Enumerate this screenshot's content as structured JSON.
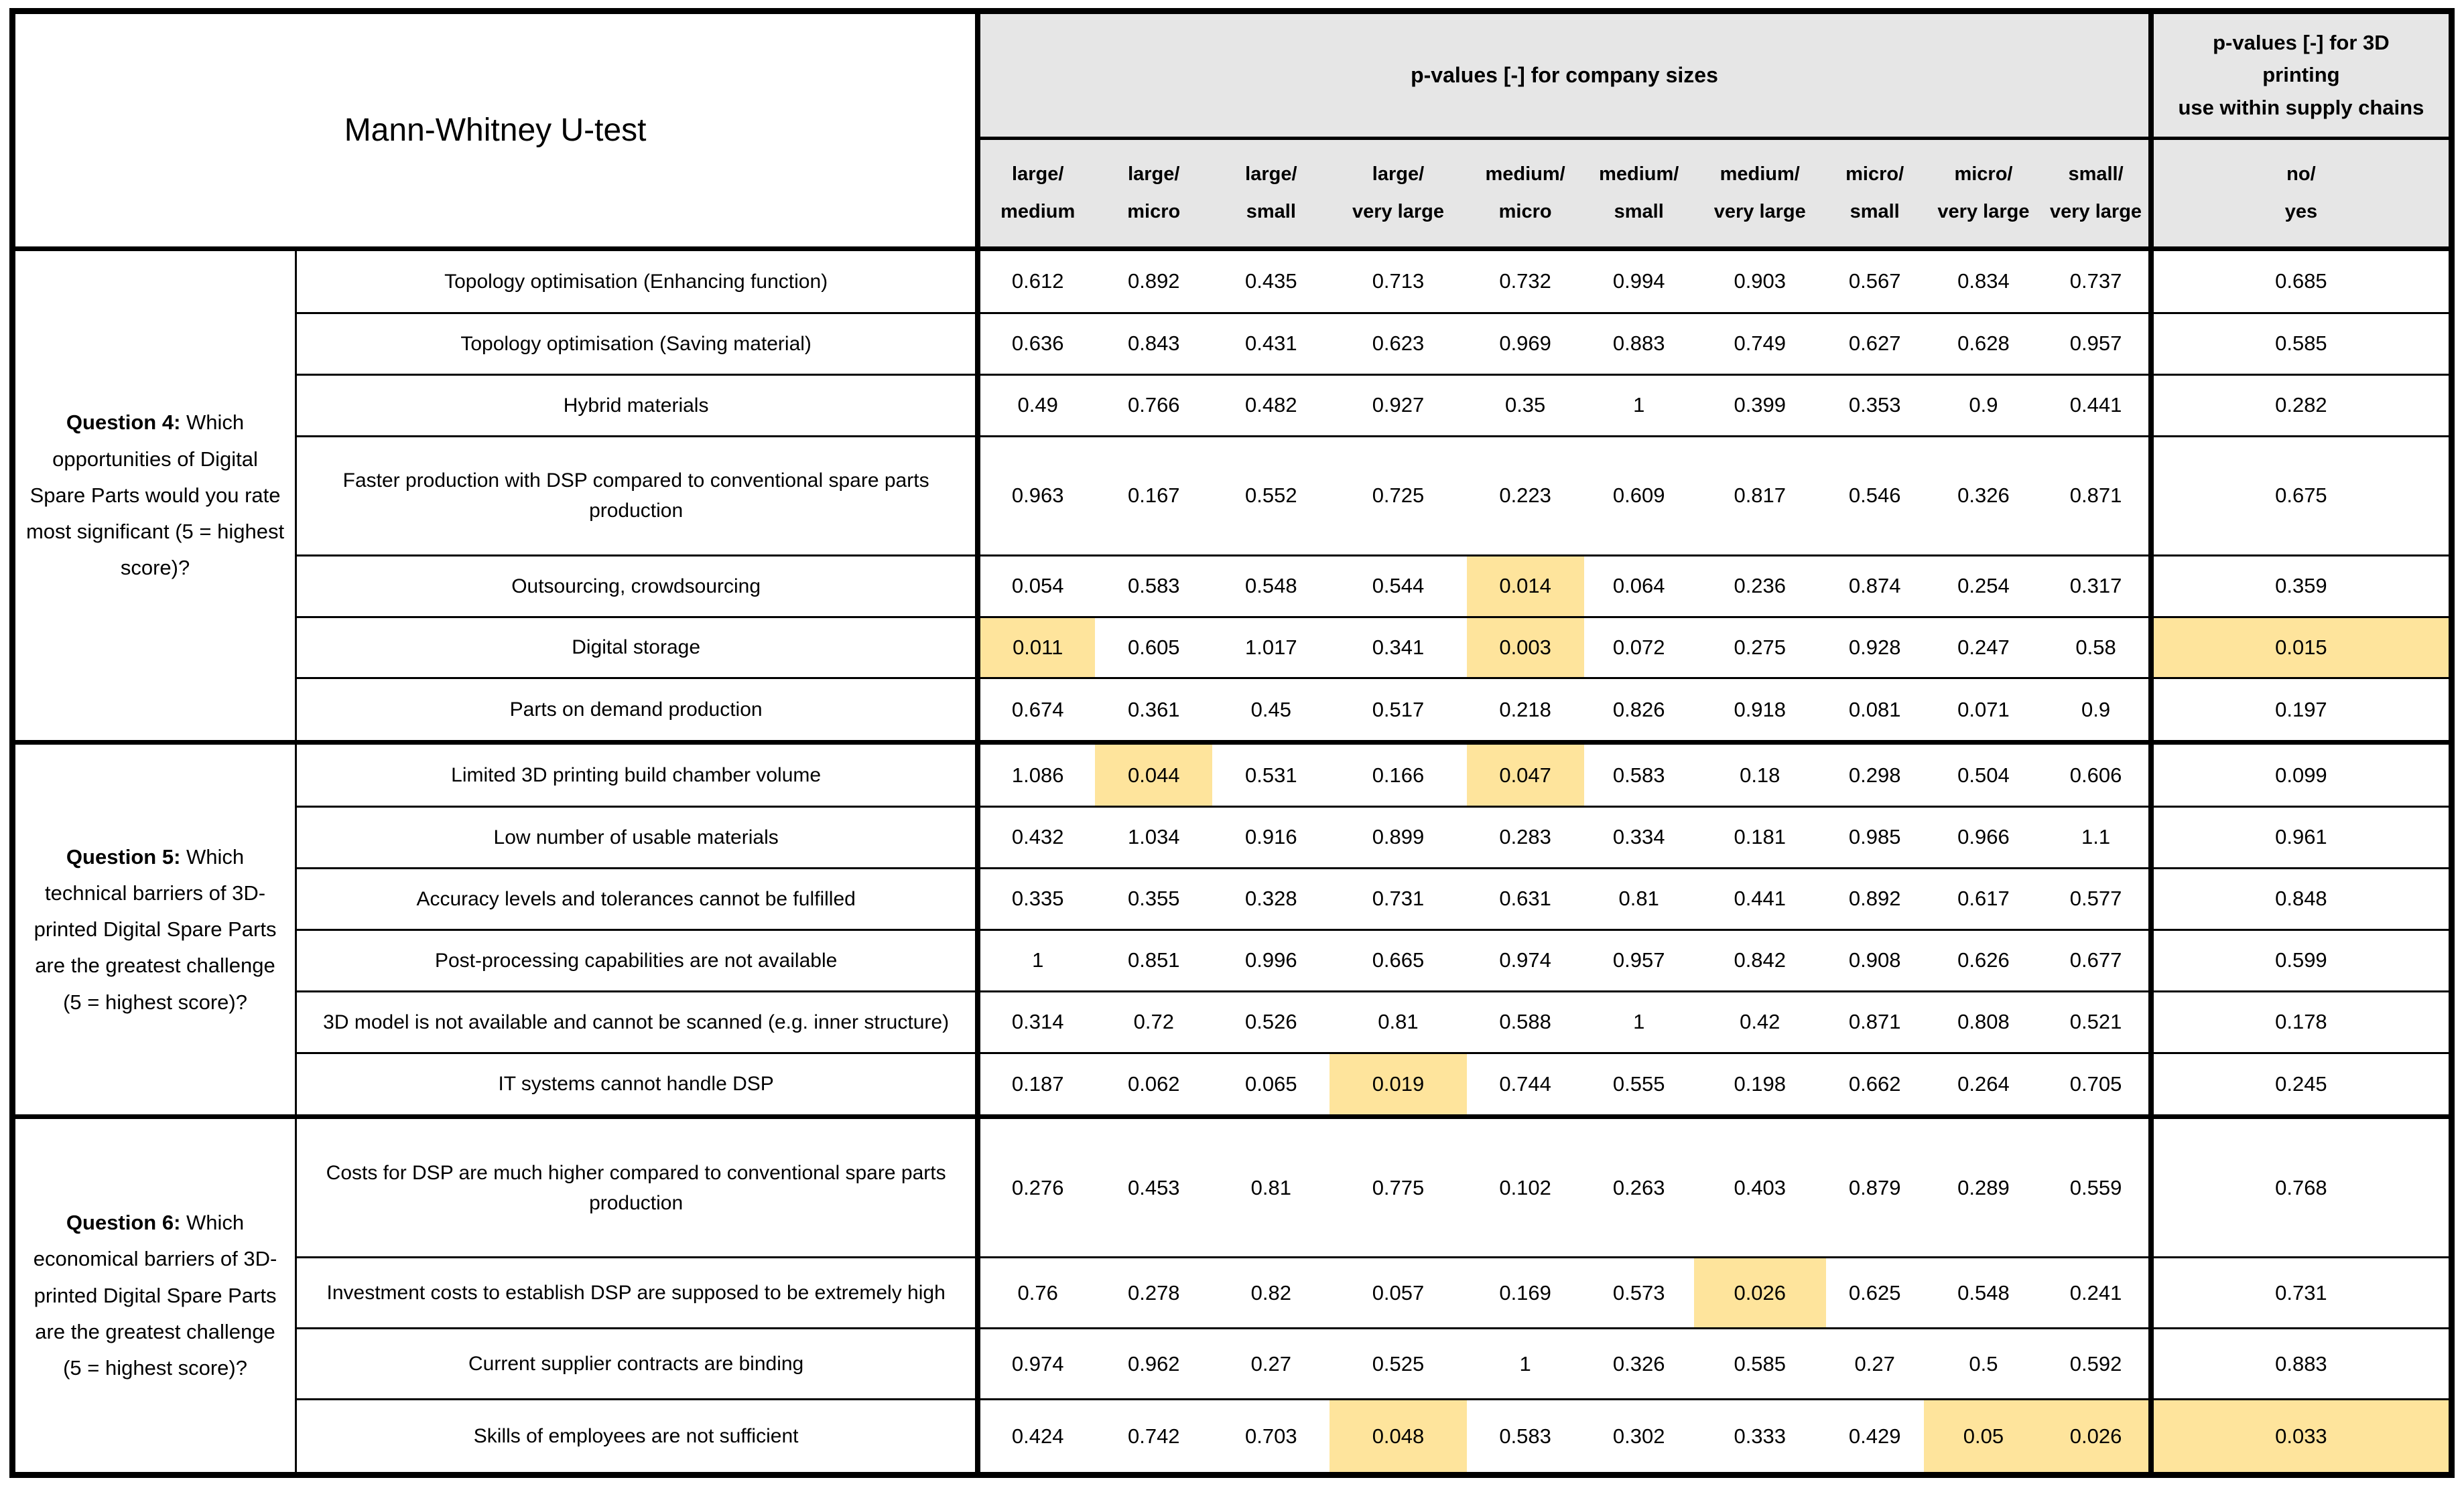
{
  "table": {
    "title": "Mann-Whitney U-test",
    "header_group_company": "p-values [-] for company sizes",
    "header_group_3dp": "p-values [-] for 3D\nprinting\nuse within supply chains",
    "columns": [
      {
        "line1": "large/",
        "line2": "medium"
      },
      {
        "line1": "large/",
        "line2": "micro"
      },
      {
        "line1": "large/",
        "line2": "small"
      },
      {
        "line1": "large/",
        "line2": "very large"
      },
      {
        "line1": "medium/",
        "line2": "micro"
      },
      {
        "line1": "medium/",
        "line2": "small"
      },
      {
        "line1": "medium/",
        "line2": "very large"
      },
      {
        "line1": "micro/",
        "line2": "small"
      },
      {
        "line1": "micro/",
        "line2": "very large"
      },
      {
        "line1": "small/",
        "line2": "very large"
      },
      {
        "line1": "no/",
        "line2": "yes"
      }
    ],
    "groups": [
      {
        "question_bold": "Question 4:",
        "question_rest": "Which opportunities of Digital Spare Parts would you rate most significant (5 = highest score)?",
        "rows": [
          {
            "label": "Topology optimisation (Enhancing function)",
            "values": [
              "0.612",
              "0.892",
              "0.435",
              "0.713",
              "0.732",
              "0.994",
              "0.903",
              "0.567",
              "0.834",
              "0.737",
              "0.685"
            ],
            "highlight": []
          },
          {
            "label": "Topology optimisation (Saving material)",
            "values": [
              "0.636",
              "0.843",
              "0.431",
              "0.623",
              "0.969",
              "0.883",
              "0.749",
              "0.627",
              "0.628",
              "0.957",
              "0.585"
            ],
            "highlight": []
          },
          {
            "label": "Hybrid materials",
            "values": [
              "0.49",
              "0.766",
              "0.482",
              "0.927",
              "0.35",
              "1",
              "0.399",
              "0.353",
              "0.9",
              "0.441",
              "0.282"
            ],
            "highlight": []
          },
          {
            "label": "Faster production with DSP compared to conventional spare parts production",
            "values": [
              "0.963",
              "0.167",
              "0.552",
              "0.725",
              "0.223",
              "0.609",
              "0.817",
              "0.546",
              "0.326",
              "0.871",
              "0.675"
            ],
            "highlight": []
          },
          {
            "label": "Outsourcing, crowdsourcing",
            "values": [
              "0.054",
              "0.583",
              "0.548",
              "0.544",
              "0.014",
              "0.064",
              "0.236",
              "0.874",
              "0.254",
              "0.317",
              "0.359"
            ],
            "highlight": [
              4
            ]
          },
          {
            "label": "Digital storage",
            "values": [
              "0.011",
              "0.605",
              "1.017",
              "0.341",
              "0.003",
              "0.072",
              "0.275",
              "0.928",
              "0.247",
              "0.58",
              "0.015"
            ],
            "highlight": [
              0,
              4,
              10
            ]
          },
          {
            "label": "Parts on demand production",
            "values": [
              "0.674",
              "0.361",
              "0.45",
              "0.517",
              "0.218",
              "0.826",
              "0.918",
              "0.081",
              "0.071",
              "0.9",
              "0.197"
            ],
            "highlight": []
          }
        ]
      },
      {
        "question_bold": "Question 5:",
        "question_rest": "Which technical barriers of 3D-printed Digital Spare Parts are the greatest challenge (5 = highest score)?",
        "rows": [
          {
            "label": "Limited 3D printing build chamber volume",
            "values": [
              "1.086",
              "0.044",
              "0.531",
              "0.166",
              "0.047",
              "0.583",
              "0.18",
              "0.298",
              "0.504",
              "0.606",
              "0.099"
            ],
            "highlight": [
              1,
              4
            ]
          },
          {
            "label": "Low number of usable materials",
            "values": [
              "0.432",
              "1.034",
              "0.916",
              "0.899",
              "0.283",
              "0.334",
              "0.181",
              "0.985",
              "0.966",
              "1.1",
              "0.961"
            ],
            "highlight": []
          },
          {
            "label": "Accuracy levels and tolerances cannot be fulfilled",
            "values": [
              "0.335",
              "0.355",
              "0.328",
              "0.731",
              "0.631",
              "0.81",
              "0.441",
              "0.892",
              "0.617",
              "0.577",
              "0.848"
            ],
            "highlight": []
          },
          {
            "label": "Post-processing capabilities are not available",
            "values": [
              "1",
              "0.851",
              "0.996",
              "0.665",
              "0.974",
              "0.957",
              "0.842",
              "0.908",
              "0.626",
              "0.677",
              "0.599"
            ],
            "highlight": []
          },
          {
            "label": "3D model is not available and cannot be scanned (e.g. inner structure)",
            "values": [
              "0.314",
              "0.72",
              "0.526",
              "0.81",
              "0.588",
              "1",
              "0.42",
              "0.871",
              "0.808",
              "0.521",
              "0.178"
            ],
            "highlight": []
          },
          {
            "label": "IT systems cannot handle DSP",
            "values": [
              "0.187",
              "0.062",
              "0.065",
              "0.019",
              "0.744",
              "0.555",
              "0.198",
              "0.662",
              "0.264",
              "0.705",
              "0.245"
            ],
            "highlight": [
              3
            ]
          }
        ]
      },
      {
        "question_bold": "Question 6:",
        "question_rest": "Which economical barriers of 3D-printed Digital Spare Parts are the greatest challenge (5 = highest score)?",
        "rows": [
          {
            "label": "Costs for DSP are much higher compared to conventional spare parts production",
            "values": [
              "0.276",
              "0.453",
              "0.81",
              "0.775",
              "0.102",
              "0.263",
              "0.403",
              "0.879",
              "0.289",
              "0.559",
              "0.768"
            ],
            "highlight": []
          },
          {
            "label": "Investment costs to establish DSP are supposed to be extremely high",
            "values": [
              "0.76",
              "0.278",
              "0.82",
              "0.057",
              "0.169",
              "0.573",
              "0.026",
              "0.625",
              "0.548",
              "0.241",
              "0.731"
            ],
            "highlight": [
              6
            ]
          },
          {
            "label": "Current supplier contracts are binding",
            "values": [
              "0.974",
              "0.962",
              "0.27",
              "0.525",
              "1",
              "0.326",
              "0.585",
              "0.27",
              "0.5",
              "0.592",
              "0.883"
            ],
            "highlight": []
          },
          {
            "label": "Skills of employees are not sufficient",
            "values": [
              "0.424",
              "0.742",
              "0.703",
              "0.048",
              "0.583",
              "0.302",
              "0.333",
              "0.429",
              "0.05",
              "0.026",
              "0.033"
            ],
            "highlight": [
              3,
              8,
              9,
              10
            ]
          }
        ]
      }
    ]
  },
  "colors": {
    "highlight": "#fee49c",
    "header_bg": "#e6e6e6",
    "border": "#000000"
  }
}
